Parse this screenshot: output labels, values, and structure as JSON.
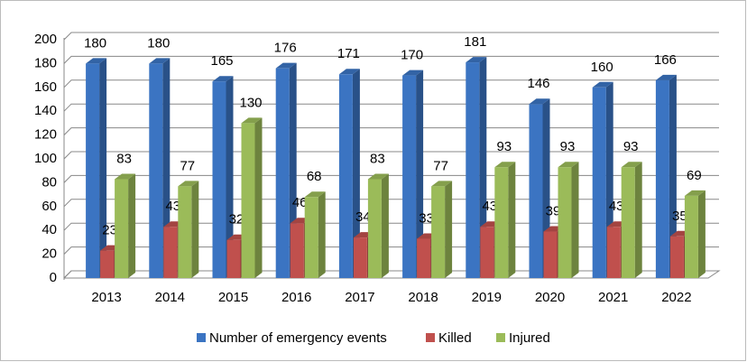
{
  "chart_data": {
    "type": "bar3d",
    "categories": [
      "2013",
      "2014",
      "2015",
      "2016",
      "2017",
      "2018",
      "2019",
      "2020",
      "2021",
      "2022"
    ],
    "series": [
      {
        "name": "Number of emergency events",
        "color": "#3b74c2",
        "values": [
          180,
          180,
          165,
          176,
          171,
          170,
          181,
          146,
          160,
          166
        ]
      },
      {
        "name": "Killed",
        "color": "#c0504d",
        "values": [
          23,
          43,
          32,
          46,
          34,
          33,
          43,
          39,
          43,
          35
        ]
      },
      {
        "name": "Injured",
        "color": "#9bbb59",
        "values": [
          83,
          77,
          130,
          68,
          83,
          77,
          93,
          93,
          93,
          69
        ]
      }
    ],
    "ylim": [
      0,
      200
    ],
    "yticks": [
      0,
      20,
      40,
      60,
      80,
      100,
      120,
      140,
      160,
      180,
      200
    ],
    "grid": true,
    "legend": "bottom"
  }
}
